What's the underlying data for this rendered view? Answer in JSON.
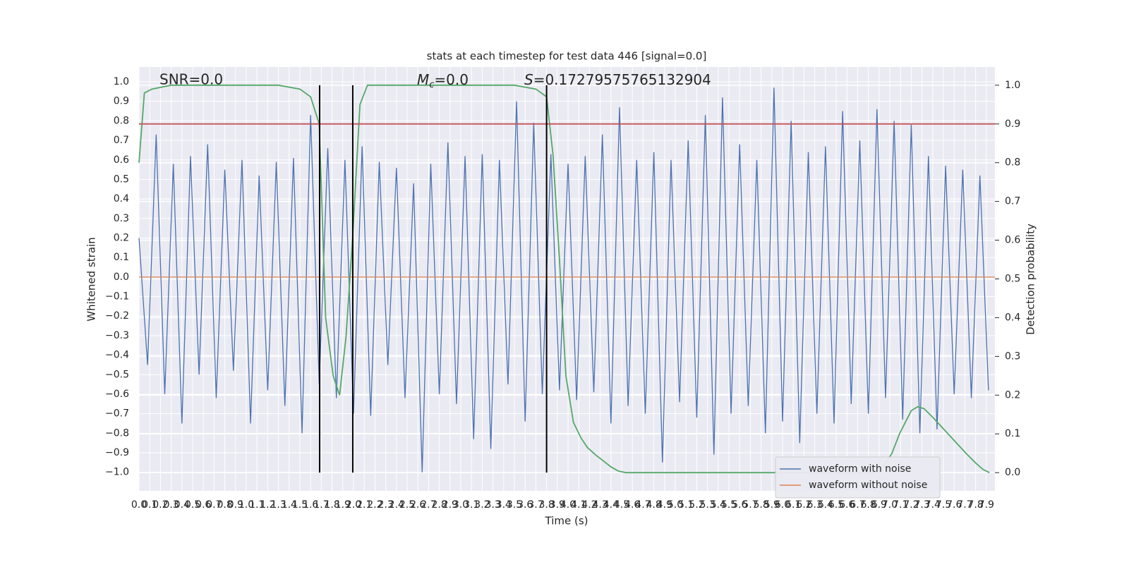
{
  "chart_data": {
    "type": "line",
    "title": "stats at each timestep for test data 446 [signal=0.0]",
    "x_label": "Time (s)",
    "y_label": "Whitened strain",
    "y2_label": "Detection probability",
    "annotations": [
      "SNR=0.0",
      {
        "symbol": "M",
        "subscript": "c",
        "rest": "=0.0"
      },
      {
        "symbol": "S",
        "rest": "=0.17279575765132904"
      }
    ],
    "xlim": [
      0,
      7.98
    ],
    "ylim": [
      -1.095,
      1.076
    ],
    "y2lim": [
      -0.047,
      1.047
    ],
    "xticks": [
      {
        "value": 0,
        "label": "0.0"
      },
      0.1,
      0.2,
      0.3,
      0.4,
      0.5,
      0.6,
      0.7,
      0.8,
      0.9,
      {
        "value": 1,
        "label": "1.0"
      },
      1.1,
      1.2,
      1.3,
      1.4,
      1.5,
      1.6,
      1.7,
      1.8,
      1.9,
      {
        "value": 2,
        "label": "2.0"
      },
      2.1,
      2.2,
      2.3,
      2.4,
      2.5,
      2.6,
      2.7,
      2.8,
      2.9,
      {
        "value": 3,
        "label": "3.0"
      },
      3.1,
      3.2,
      3.3,
      3.4,
      3.5,
      3.6,
      3.7,
      3.8,
      3.9,
      {
        "value": 4,
        "label": "4.0"
      },
      4.1,
      4.2,
      4.3,
      4.4,
      4.5,
      4.6,
      4.7,
      4.8,
      4.9,
      {
        "value": 5,
        "label": "5.0"
      },
      5.1,
      5.2,
      5.3,
      5.4,
      5.5,
      5.6,
      5.7,
      5.8,
      5.9,
      {
        "value": 6,
        "label": "6.0"
      },
      6.1,
      6.2,
      6.3,
      6.4,
      6.5,
      6.6,
      6.7,
      6.8,
      6.9,
      {
        "value": 7,
        "label": "7.0"
      },
      7.1,
      7.2,
      7.3,
      7.4,
      7.5,
      7.6,
      7.7,
      7.8,
      7.9
    ],
    "yticks": [
      {
        "value": -1,
        "label": "−1.0"
      },
      {
        "value": -0.9,
        "label": "−0.9"
      },
      {
        "value": -0.8,
        "label": "−0.8"
      },
      {
        "value": -0.7,
        "label": "−0.7"
      },
      {
        "value": -0.6,
        "label": "−0.6"
      },
      {
        "value": -0.5,
        "label": "−0.5"
      },
      {
        "value": -0.4,
        "label": "−0.4"
      },
      {
        "value": -0.3,
        "label": "−0.3"
      },
      {
        "value": -0.2,
        "label": "−0.2"
      },
      {
        "value": -0.1,
        "label": "−0.1"
      },
      {
        "value": 0,
        "label": "0.0"
      },
      0.1,
      0.2,
      0.3,
      0.4,
      0.5,
      0.6,
      0.7,
      0.8,
      0.9,
      {
        "value": 1,
        "label": "1.0"
      }
    ],
    "y2ticks": [
      {
        "value": 0,
        "label": "0.0"
      },
      0.1,
      0.2,
      0.3,
      0.4,
      0.5,
      0.6,
      0.7,
      0.8,
      0.9,
      {
        "value": 1,
        "label": "1.0"
      }
    ],
    "grid": true,
    "legend": "lower right",
    "series": [
      {
        "name": "waveform with noise",
        "color": "#4c72b0",
        "x": [
          0,
          0.08,
          0.16,
          0.24,
          0.32,
          0.4,
          0.48,
          0.56,
          0.64,
          0.72,
          0.8,
          0.88,
          0.96,
          1.04,
          1.12,
          1.2,
          1.28,
          1.36,
          1.44,
          1.52,
          1.6,
          1.68,
          1.76,
          1.84,
          1.92,
          2,
          2.08,
          2.16,
          2.24,
          2.32,
          2.4,
          2.48,
          2.56,
          2.64,
          2.72,
          2.8,
          2.88,
          2.96,
          3.04,
          3.12,
          3.2,
          3.28,
          3.36,
          3.44,
          3.52,
          3.6,
          3.68,
          3.76,
          3.84,
          3.92,
          4,
          4.08,
          4.16,
          4.24,
          4.32,
          4.4,
          4.48,
          4.56,
          4.64,
          4.72,
          4.8,
          4.88,
          4.96,
          5.04,
          5.12,
          5.2,
          5.28,
          5.36,
          5.44,
          5.52,
          5.6,
          5.68,
          5.76,
          5.84,
          5.92,
          6,
          6.08,
          6.16,
          6.24,
          6.32,
          6.4,
          6.48,
          6.56,
          6.64,
          6.72,
          6.8,
          6.88,
          6.96,
          7.04,
          7.12,
          7.2,
          7.28,
          7.36,
          7.44,
          7.52,
          7.6,
          7.68,
          7.76,
          7.84,
          7.92
        ],
        "values": [
          0.2,
          -0.45,
          0.73,
          -0.6,
          0.58,
          -0.75,
          0.62,
          -0.5,
          0.68,
          -0.62,
          0.55,
          -0.48,
          0.6,
          -0.75,
          0.52,
          -0.58,
          0.59,
          -0.66,
          0.61,
          -0.8,
          0.83,
          -0.55,
          0.66,
          -0.62,
          0.6,
          -0.7,
          0.67,
          -0.71,
          0.59,
          -0.45,
          0.56,
          -0.62,
          0.48,
          -1.0,
          0.58,
          -0.6,
          0.69,
          -0.65,
          0.62,
          -0.83,
          0.63,
          -0.88,
          0.6,
          -0.55,
          0.9,
          -0.74,
          0.79,
          -0.6,
          0.63,
          -0.58,
          0.58,
          -0.63,
          0.62,
          -0.59,
          0.73,
          -0.75,
          0.87,
          -0.66,
          0.6,
          -0.7,
          0.64,
          -0.95,
          0.6,
          -0.64,
          0.7,
          -0.72,
          0.83,
          -0.91,
          0.92,
          -0.7,
          0.68,
          -0.66,
          0.6,
          -0.8,
          0.97,
          -0.74,
          0.8,
          -0.85,
          0.64,
          -0.7,
          0.67,
          -0.75,
          0.85,
          -0.65,
          0.7,
          -0.7,
          0.86,
          -0.62,
          0.8,
          -0.73,
          0.78,
          -0.8,
          0.62,
          -0.78,
          0.57,
          -0.6,
          0.55,
          -0.62,
          0.52,
          -0.58
        ]
      },
      {
        "name": "waveform without noise",
        "color": "#dd8452",
        "x": [
          0,
          7.98
        ],
        "values": [
          0,
          0
        ]
      },
      {
        "color": "#55a868",
        "axis": "y2",
        "x": [
          0,
          0.05,
          0.12,
          0.3,
          0.6,
          1.0,
          1.3,
          1.5,
          1.6,
          1.68,
          1.74,
          1.81,
          1.87,
          1.93,
          1.99,
          2.06,
          2.13,
          2.5,
          3.0,
          3.5,
          3.7,
          3.8,
          3.86,
          3.92,
          3.98,
          4.05,
          4.12,
          4.18,
          4.26,
          4.33,
          4.4,
          4.47,
          4.54,
          5.0,
          6.0,
          6.88,
          6.95,
          7.02,
          7.09,
          7.2,
          7.26,
          7.32,
          7.41,
          7.51,
          7.61,
          7.71,
          7.8,
          7.87,
          7.93
        ],
        "values": [
          0.8,
          0.98,
          0.99,
          1.0,
          1.0,
          1.0,
          1.0,
          0.99,
          0.97,
          0.9,
          0.4,
          0.25,
          0.2,
          0.35,
          0.6,
          0.95,
          1.0,
          1.0,
          1.0,
          1.0,
          0.99,
          0.97,
          0.82,
          0.55,
          0.25,
          0.13,
          0.09,
          0.065,
          0.045,
          0.03,
          0.015,
          0.004,
          0.0,
          0.0,
          0.0,
          0.0,
          0.02,
          0.05,
          0.1,
          0.16,
          0.17,
          0.165,
          0.14,
          0.11,
          0.08,
          0.05,
          0.025,
          0.008,
          0.0
        ]
      }
    ],
    "vlines": [
      1.684,
      1.993,
      3.8
    ],
    "vline_color": "#000000",
    "hline_y2": 0.9,
    "hline_color": "#c44e52"
  }
}
